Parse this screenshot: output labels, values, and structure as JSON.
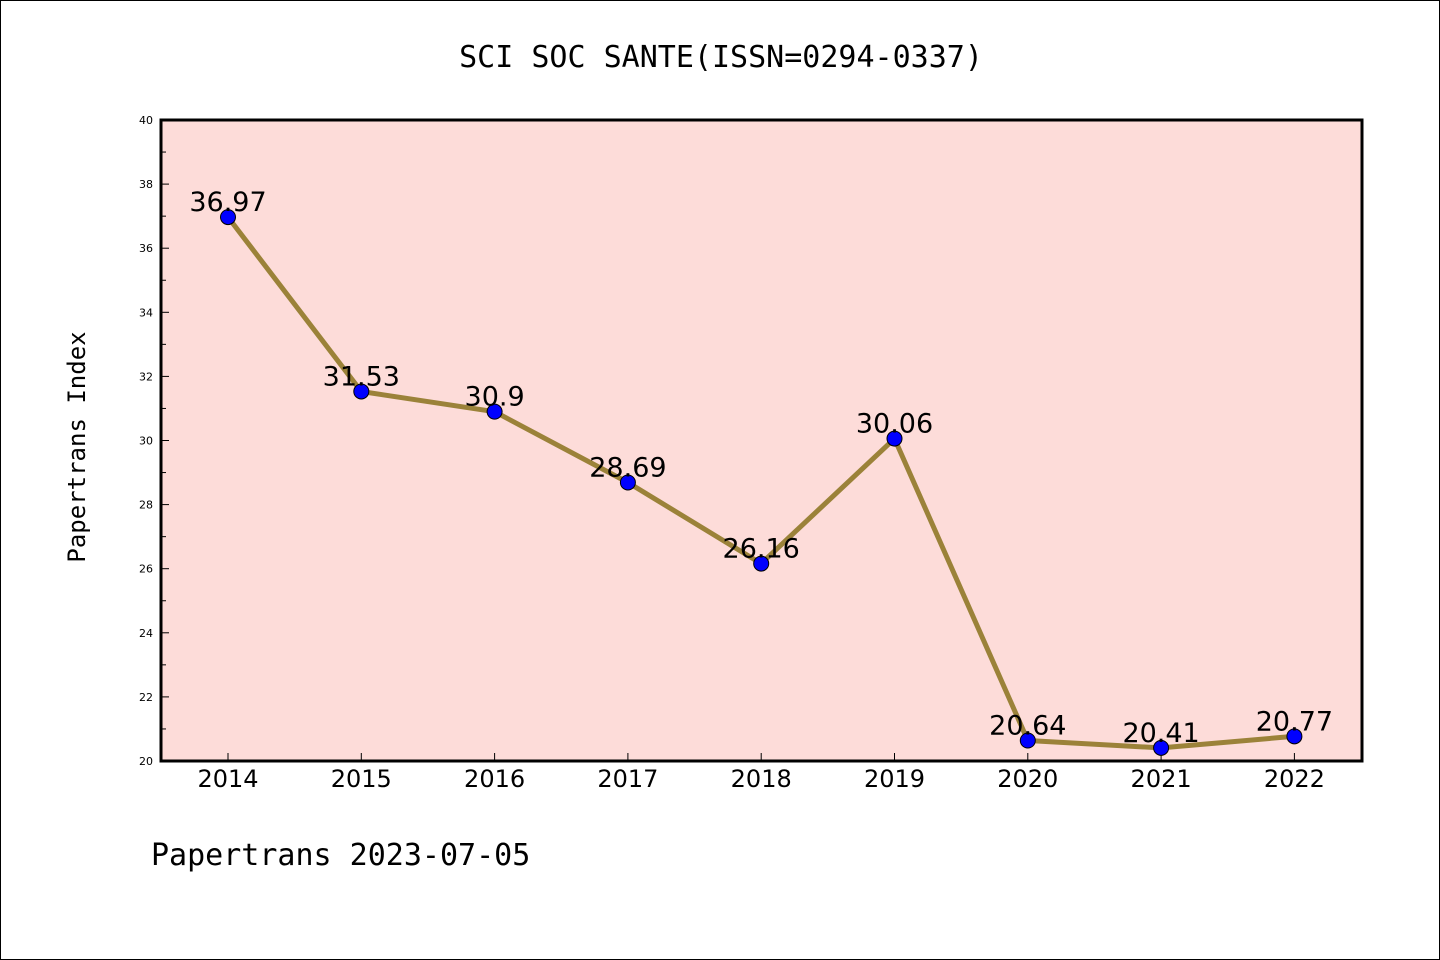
{
  "chart_data": {
    "type": "line",
    "title": "SCI SOC SANTE(ISSN=0294-0337)",
    "ylabel": "Papertrans Index",
    "xlabel": "",
    "footer": "Papertrans 2023-07-05",
    "categories": [
      "2014",
      "2015",
      "2016",
      "2017",
      "2018",
      "2019",
      "2020",
      "2021",
      "2022"
    ],
    "series": [
      {
        "values": [
          36.97,
          31.53,
          30.9,
          28.69,
          26.16,
          30.06,
          20.64,
          20.41,
          20.77
        ],
        "labels": [
          "36.97",
          "31.53",
          "30.9",
          "28.69",
          "26.16",
          "30.06",
          "20.64",
          "20.41",
          "20.77"
        ]
      }
    ],
    "ylim": [
      20,
      40
    ],
    "yticks": [
      "20",
      "22",
      "24",
      "26",
      "28",
      "30",
      "32",
      "34",
      "36",
      "38",
      "40"
    ],
    "grid": false,
    "colors": {
      "plot_background": "#fddcd9",
      "line": "#9b8239",
      "marker": "#0000ff",
      "axis": "#000000"
    }
  }
}
